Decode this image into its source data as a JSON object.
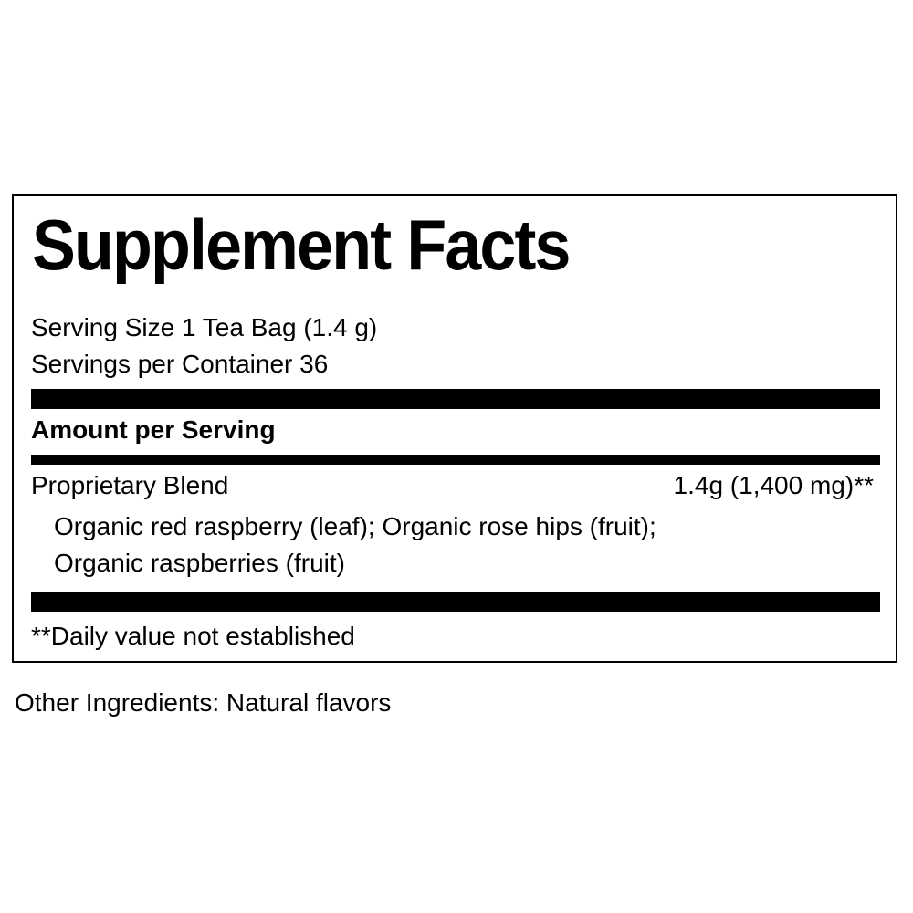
{
  "title": "Supplement Facts",
  "serving_size": "Serving Size 1 Tea Bag (1.4 g)",
  "servings_per_container": "Servings per Container 36",
  "amount_header": "Amount per Serving",
  "blend": {
    "name": "Proprietary Blend",
    "amount": "1.4g (1,400 mg)**",
    "ingredients_line1": "Organic red raspberry (leaf); Organic rose hips (fruit);",
    "ingredients_line2": "Organic raspberries (fruit)"
  },
  "footnote": "**Daily value not established",
  "other_ingredients": "Other Ingredients: Natural flavors"
}
